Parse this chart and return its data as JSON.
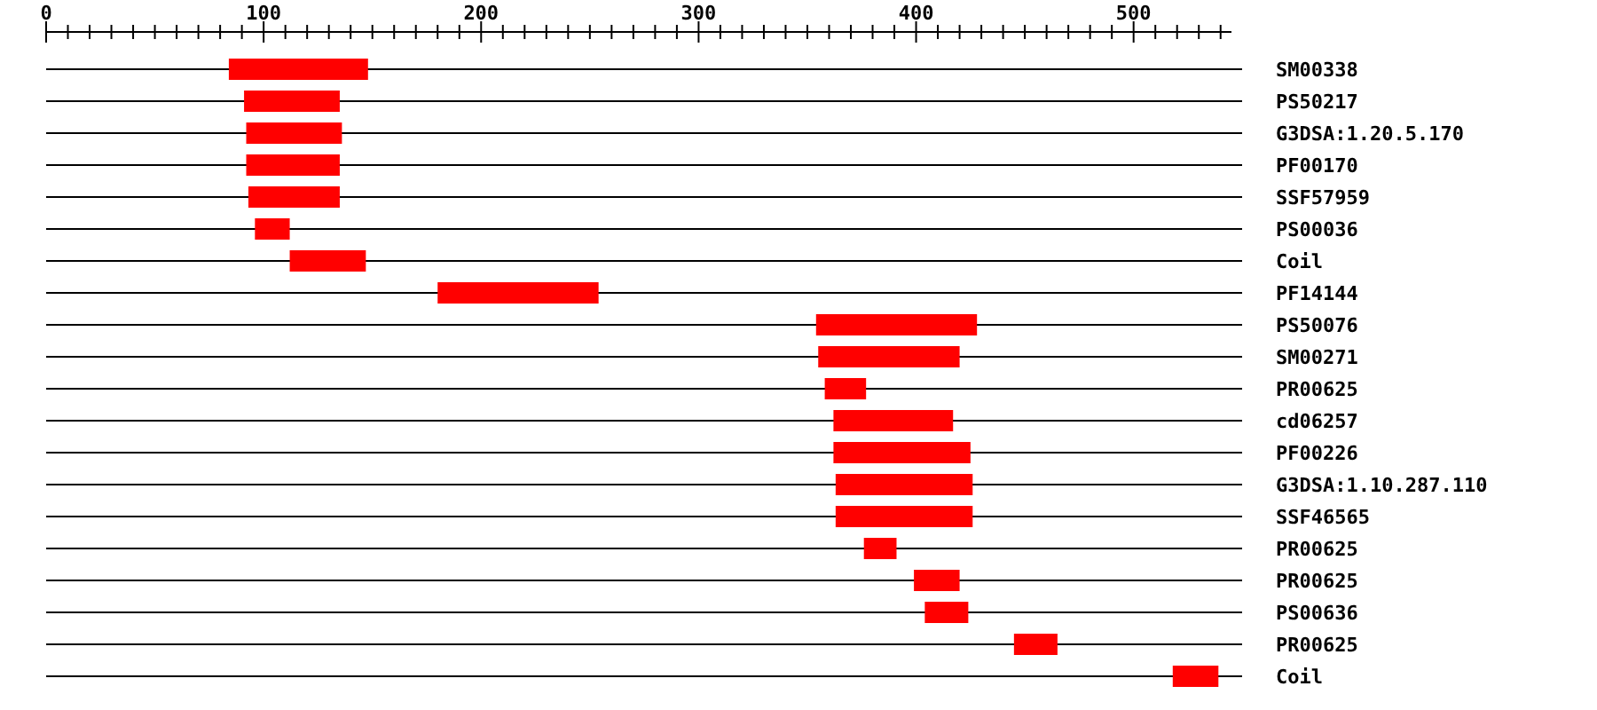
{
  "chart_data": {
    "type": "bar",
    "orientation": "horizontal",
    "grid": "y",
    "categories": [
      "SM00338",
      "PS50217",
      "G3DSA:1.20.5.170",
      "PF00170",
      "SSF57959",
      "PS00036",
      "Coil",
      "PF14144",
      "PS50076",
      "SM00271",
      "PR00625",
      "cd06257",
      "PF00226",
      "G3DSA:1.10.287.110",
      "SSF46565",
      "PR00625",
      "PR00625",
      "PS00636",
      "PR00625",
      "Coil"
    ],
    "base": [
      84,
      91,
      92,
      92,
      93,
      96,
      112,
      180,
      354,
      355,
      358,
      362,
      362,
      363,
      363,
      376,
      399,
      404,
      445,
      518
    ],
    "values": [
      64,
      44,
      44,
      43,
      42,
      16,
      35,
      74,
      74,
      65,
      19,
      55,
      63,
      63,
      63,
      15,
      21,
      20,
      20,
      21
    ],
    "color": "#ff0000",
    "xlim": [
      0,
      545
    ],
    "xticks": [
      0,
      {
        "value": 10,
        "label": null
      },
      {
        "value": 20,
        "label": null
      },
      {
        "value": 30,
        "label": null
      },
      {
        "value": 40,
        "label": null
      },
      {
        "value": 50,
        "label": null
      },
      {
        "value": 60,
        "label": null
      },
      {
        "value": 70,
        "label": null
      },
      {
        "value": 80,
        "label": null
      },
      {
        "value": 90,
        "label": null
      },
      100,
      {
        "value": 110,
        "label": null
      },
      {
        "value": 120,
        "label": null
      },
      {
        "value": 130,
        "label": null
      },
      {
        "value": 140,
        "label": null
      },
      {
        "value": 150,
        "label": null
      },
      {
        "value": 160,
        "label": null
      },
      {
        "value": 170,
        "label": null
      },
      {
        "value": 180,
        "label": null
      },
      {
        "value": 190,
        "label": null
      },
      200,
      {
        "value": 210,
        "label": null
      },
      {
        "value": 220,
        "label": null
      },
      {
        "value": 230,
        "label": null
      },
      {
        "value": 240,
        "label": null
      },
      {
        "value": 250,
        "label": null
      },
      {
        "value": 260,
        "label": null
      },
      {
        "value": 270,
        "label": null
      },
      {
        "value": 280,
        "label": null
      },
      {
        "value": 290,
        "label": null
      },
      300,
      {
        "value": 310,
        "label": null
      },
      {
        "value": 320,
        "label": null
      },
      {
        "value": 330,
        "label": null
      },
      {
        "value": 340,
        "label": null
      },
      {
        "value": 350,
        "label": null
      },
      {
        "value": 360,
        "label": null
      },
      {
        "value": 370,
        "label": null
      },
      {
        "value": 380,
        "label": null
      },
      {
        "value": 390,
        "label": null
      },
      400,
      {
        "value": 410,
        "label": null
      },
      {
        "value": 420,
        "label": null
      },
      {
        "value": 430,
        "label": null
      },
      {
        "value": 440,
        "label": null
      },
      {
        "value": 450,
        "label": null
      },
      {
        "value": 460,
        "label": null
      },
      {
        "value": 470,
        "label": null
      },
      {
        "value": 480,
        "label": null
      },
      {
        "value": 490,
        "label": null
      },
      500,
      {
        "value": 510,
        "label": null
      },
      {
        "value": 520,
        "label": null
      },
      {
        "value": 530,
        "label": null
      },
      {
        "value": 540,
        "label": null
      }
    ]
  }
}
